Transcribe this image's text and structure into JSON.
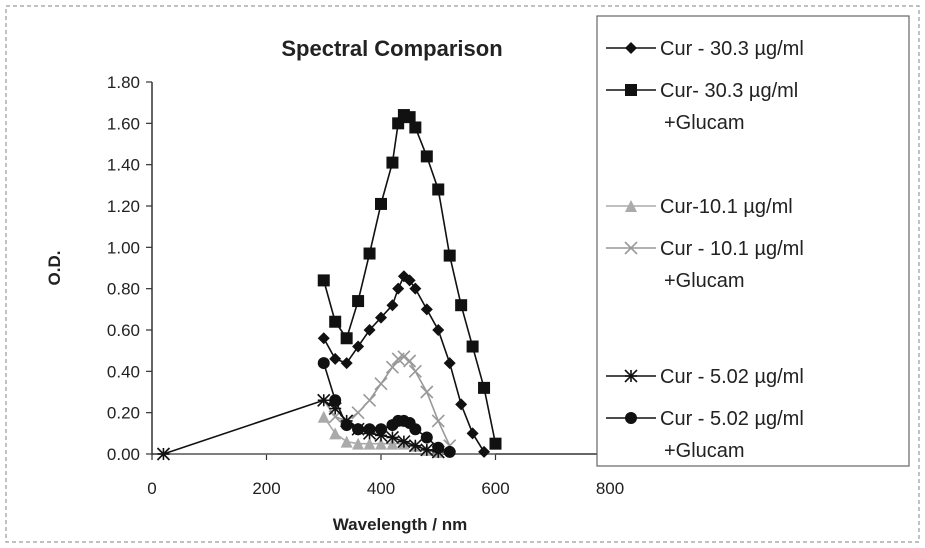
{
  "chart_data": {
    "type": "line",
    "title": "Spectral Comparison",
    "xlabel": "Wavelength / nm",
    "ylabel": "O.D.",
    "xlim": [
      0,
      800
    ],
    "ylim": [
      0,
      1.8
    ],
    "xticks": [
      0,
      200,
      400,
      600,
      800
    ],
    "xtick_labels": [
      "0",
      "200",
      "400",
      "600",
      "800"
    ],
    "yticks": [
      0,
      0.2,
      0.4,
      0.6,
      0.8,
      1.0,
      1.2,
      1.4,
      1.6,
      1.8
    ],
    "ytick_labels": [
      "0.00",
      "0.20",
      "0.40",
      "0.60",
      "0.80",
      "1.00",
      "1.20",
      "1.40",
      "1.60",
      "1.80"
    ],
    "grid": false,
    "legend_position": "right",
    "series": [
      {
        "name": "Cur - 30.3   µg/ml",
        "legend_lines": [
          "Cur - 30.3   µg/ml"
        ],
        "marker": "diamond",
        "color": "#111111",
        "x": [
          300,
          320,
          340,
          360,
          380,
          400,
          420,
          430,
          440,
          450,
          460,
          480,
          500,
          520,
          540,
          560,
          580
        ],
        "y": [
          0.56,
          0.46,
          0.44,
          0.52,
          0.6,
          0.66,
          0.72,
          0.8,
          0.86,
          0.84,
          0.8,
          0.7,
          0.6,
          0.44,
          0.24,
          0.1,
          0.01
        ]
      },
      {
        "name": "Cur- 30.3  µg/ml +Glucam",
        "legend_lines": [
          "Cur- 30.3  µg/ml",
          "+Glucam"
        ],
        "marker": "square",
        "color": "#111111",
        "x": [
          300,
          320,
          340,
          360,
          380,
          400,
          420,
          430,
          440,
          450,
          460,
          480,
          500,
          520,
          540,
          560,
          580,
          600
        ],
        "y": [
          0.84,
          0.64,
          0.56,
          0.74,
          0.97,
          1.21,
          1.41,
          1.6,
          1.64,
          1.63,
          1.58,
          1.44,
          1.28,
          0.96,
          0.72,
          0.52,
          0.32,
          0.05
        ]
      },
      {
        "name": "Cur-10.1  µg/ml",
        "legend_lines": [
          "Cur-10.1  µg/ml"
        ],
        "marker": "triangle",
        "color": "#aaaaaa",
        "x": [
          300,
          320,
          340,
          360,
          380,
          400,
          420,
          440,
          460,
          480,
          500
        ],
        "y": [
          0.18,
          0.1,
          0.06,
          0.05,
          0.05,
          0.05,
          0.05,
          0.05,
          0.04,
          0.02,
          0.01
        ]
      },
      {
        "name": "Cur - 10.1  µg/ml +Glucam",
        "legend_lines": [
          "Cur - 10.1  µg/ml",
          "+Glucam"
        ],
        "marker": "x",
        "color": "#999999",
        "x": [
          300,
          320,
          340,
          360,
          380,
          400,
          420,
          430,
          440,
          450,
          460,
          480,
          500,
          520
        ],
        "y": [
          0.26,
          0.18,
          0.16,
          0.2,
          0.26,
          0.34,
          0.42,
          0.46,
          0.47,
          0.45,
          0.4,
          0.3,
          0.16,
          0.04
        ]
      },
      {
        "name": "Cur - 5.02  µg/ml",
        "legend_lines": [
          "Cur - 5.02  µg/ml"
        ],
        "marker": "star",
        "color": "#111111",
        "x": [
          20,
          300,
          320,
          340,
          360,
          380,
          400,
          420,
          440,
          460,
          480,
          500
        ],
        "y": [
          0.0,
          0.26,
          0.22,
          0.16,
          0.12,
          0.1,
          0.09,
          0.08,
          0.06,
          0.04,
          0.02,
          0.01
        ]
      },
      {
        "name": "Cur - 5.02  µg/ml +Glucam",
        "legend_lines": [
          "Cur - 5.02  µg/ml",
          "+Glucam"
        ],
        "marker": "circle",
        "color": "#111111",
        "x": [
          300,
          320,
          340,
          360,
          380,
          400,
          420,
          430,
          440,
          450,
          460,
          480,
          500,
          520
        ],
        "y": [
          0.44,
          0.26,
          0.14,
          0.12,
          0.12,
          0.12,
          0.14,
          0.16,
          0.16,
          0.15,
          0.12,
          0.08,
          0.03,
          0.01
        ]
      }
    ]
  }
}
